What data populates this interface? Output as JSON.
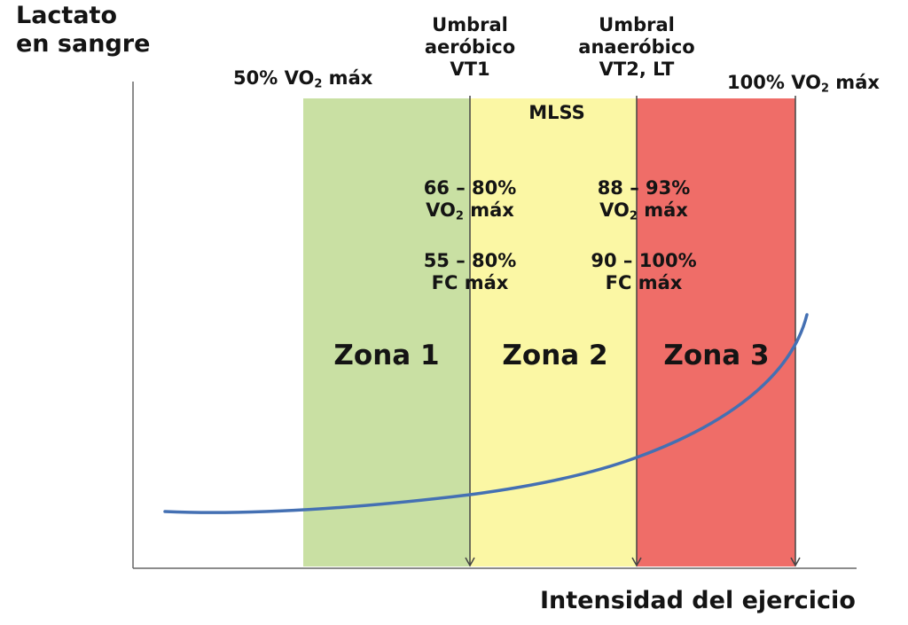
{
  "y_axis_label": [
    "Lactato",
    "en sangre"
  ],
  "x_axis_label": "Intensidad del ejercicio",
  "markers": {
    "vo2_50": {
      "pre": "50% VO",
      "sub": "2",
      "post": " máx"
    },
    "vo2_100": {
      "pre": "100% VO",
      "sub": "2",
      "post": " máx"
    },
    "aerobic": [
      "Umbral",
      "aeróbico",
      "VT1"
    ],
    "anaerobic": [
      "Umbral",
      "anaeróbico",
      "VT2, LT"
    ],
    "mlss": "MLSS"
  },
  "ranges": {
    "vt1_vo2": {
      "line1": "66 – 80%",
      "pre": "VO",
      "sub": "2",
      "post": " máx"
    },
    "vt1_fc": [
      "55 – 80%",
      "FC máx"
    ],
    "vt2_vo2": {
      "line1": "88 – 93%",
      "pre": "VO",
      "sub": "2",
      "post": " máx"
    },
    "vt2_fc": [
      "90 – 100%",
      "FC máx"
    ]
  },
  "zones": [
    {
      "label": "Zona 1",
      "color": "#c9e0a3"
    },
    {
      "label": "Zona 2",
      "color": "#fbf7a4"
    },
    {
      "label": "Zona 3",
      "color": "#ef6d68"
    }
  ],
  "curve_color": "#4470b3"
}
